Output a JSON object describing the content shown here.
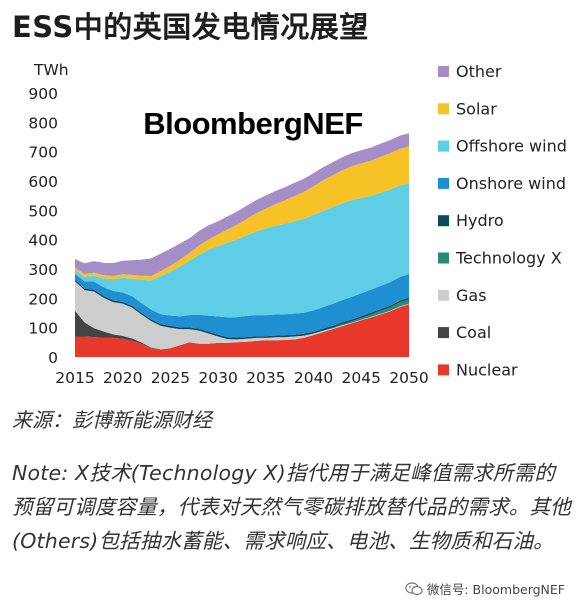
{
  "page": {
    "title": "ESS中的英国发电情况展望",
    "source": "来源：彭博新能源财经",
    "note": "Note: X技术(Technology X)指代用于满足峰值需求所需的预留可调度容量，代表对天然气零碳排放替代品的需求。其他(Others)包括抽水蓄能、需求响应、电池、生物质和石油。",
    "watermark": "微信号: BloombergNEF"
  },
  "chart_data": {
    "type": "area",
    "stacked": true,
    "logo": "BloombergNEF",
    "ylabel": "TWh",
    "ylim": [
      0,
      900
    ],
    "yticks": [
      "0",
      "100",
      "200",
      "300",
      "400",
      "500",
      "600",
      "700",
      "800",
      "900"
    ],
    "xlim": [
      2015,
      2050
    ],
    "xticks": [
      "2015",
      "2020",
      "2025",
      "2030",
      "2035",
      "2040",
      "2045",
      "2050"
    ],
    "x": [
      2015,
      2016,
      2017,
      2018,
      2019,
      2020,
      2021,
      2022,
      2023,
      2024,
      2025,
      2026,
      2027,
      2028,
      2029,
      2030,
      2031,
      2032,
      2033,
      2034,
      2035,
      2036,
      2037,
      2038,
      2039,
      2040,
      2041,
      2042,
      2043,
      2044,
      2045,
      2046,
      2047,
      2048,
      2049,
      2050
    ],
    "legend_position": "right",
    "series": [
      {
        "name": "Nuclear",
        "color": "#e8382b",
        "values": [
          70,
          70,
          68,
          65,
          65,
          62,
          55,
          45,
          30,
          25,
          30,
          40,
          50,
          45,
          45,
          48,
          48,
          50,
          52,
          55,
          57,
          57,
          58,
          60,
          65,
          75,
          85,
          95,
          105,
          115,
          125,
          135,
          145,
          155,
          170,
          180
        ]
      },
      {
        "name": "Coal",
        "color": "#444444",
        "values": [
          88,
          48,
          30,
          22,
          12,
          10,
          8,
          4,
          2,
          1,
          0,
          0,
          0,
          0,
          0,
          0,
          0,
          0,
          0,
          0,
          0,
          0,
          0,
          0,
          0,
          0,
          0,
          0,
          0,
          0,
          0,
          0,
          0,
          0,
          0,
          0
        ]
      },
      {
        "name": "Gas",
        "color": "#cdcdcd",
        "values": [
          100,
          110,
          125,
          115,
          110,
          110,
          105,
          95,
          90,
          80,
          70,
          55,
          45,
          45,
          35,
          22,
          13,
          10,
          10,
          10,
          8,
          10,
          10,
          10,
          8,
          5,
          5,
          3,
          3,
          2,
          2,
          2,
          2,
          2,
          2,
          2
        ]
      },
      {
        "name": "Technology X",
        "color": "#2a8a73",
        "values": [
          0,
          0,
          0,
          0,
          0,
          0,
          0,
          0,
          0,
          0,
          0,
          0,
          0,
          0,
          0,
          0,
          0,
          0,
          0,
          0,
          0,
          0,
          0,
          0,
          0,
          0,
          0,
          2,
          4,
          5,
          6,
          8,
          10,
          12,
          14,
          15
        ]
      },
      {
        "name": "Hydro",
        "color": "#0b4a5c",
        "values": [
          6,
          6,
          6,
          6,
          6,
          6,
          6,
          6,
          6,
          6,
          6,
          6,
          6,
          6,
          6,
          6,
          6,
          6,
          6,
          6,
          6,
          6,
          6,
          6,
          6,
          6,
          6,
          6,
          6,
          6,
          6,
          6,
          6,
          6,
          6,
          6
        ]
      },
      {
        "name": "Onshore wind",
        "color": "#1f8fd2",
        "values": [
          20,
          24,
          28,
          30,
          32,
          32,
          33,
          33,
          33,
          34,
          35,
          38,
          42,
          48,
          55,
          62,
          68,
          70,
          72,
          72,
          72,
          72,
          72,
          72,
          72,
          73,
          74,
          75,
          76,
          77,
          78,
          78,
          79,
          80,
          80,
          80
        ]
      },
      {
        "name": "Offshore wind",
        "color": "#5ecde6",
        "values": [
          12,
          15,
          20,
          30,
          40,
          50,
          60,
          80,
          100,
          130,
          150,
          170,
          185,
          205,
          225,
          240,
          255,
          265,
          275,
          285,
          295,
          302,
          308,
          315,
          320,
          325,
          328,
          330,
          330,
          330,
          325,
          320,
          318,
          315,
          312,
          310
        ]
      },
      {
        "name": "Solar",
        "color": "#f6c225",
        "values": [
          8,
          10,
          10,
          11,
          11,
          12,
          13,
          14,
          15,
          17,
          20,
          23,
          27,
          31,
          35,
          40,
          45,
          50,
          56,
          62,
          68,
          74,
          80,
          86,
          92,
          98,
          104,
          108,
          112,
          115,
          118,
          120,
          122,
          124,
          125,
          125
        ]
      },
      {
        "name": "Other",
        "color": "#a58ec7",
        "values": [
          30,
          36,
          40,
          42,
          44,
          46,
          50,
          55,
          60,
          60,
          58,
          55,
          50,
          50,
          48,
          45,
          45,
          45,
          45,
          45,
          45,
          45,
          45,
          45,
          45,
          45,
          45,
          45,
          45,
          45,
          45,
          45,
          45,
          45,
          45,
          45
        ]
      }
    ],
    "legend_order": [
      "Other",
      "Solar",
      "Offshore wind",
      "Onshore wind",
      "Hydro",
      "Technology X",
      "Gas",
      "Coal",
      "Nuclear"
    ]
  }
}
